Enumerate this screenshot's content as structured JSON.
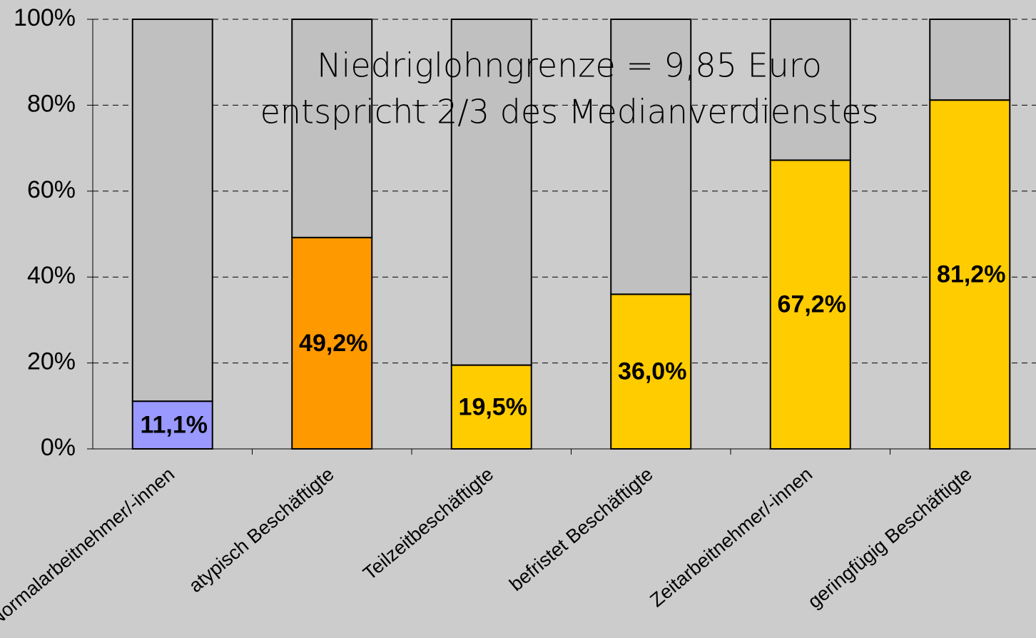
{
  "chart_data": {
    "type": "stacked_bar",
    "annotation": [
      "Niedriglohngrenze = 9,85 Euro",
      "entspricht 2/3 des Medianverdienstes"
    ],
    "categories": [
      "Normalarbeitnehmer/-innen",
      "atypisch Beschäftigte",
      "Teilzeitbeschäftigte",
      "befristet Beschäftigte",
      "Zeitarbeitnehmer/-innen",
      "geringfügig Beschäftigte"
    ],
    "series": [
      {
        "colors": [
          "#9999ff",
          "#ff9900",
          "#ffcc00",
          "#ffcc00",
          "#ffcc00",
          "#ffcc00"
        ],
        "values": [
          11.1,
          49.2,
          19.5,
          36.0,
          67.2,
          81.2
        ],
        "value_labels": [
          "11,1%",
          "49,2%",
          "19,5%",
          "36,0%",
          "67,2%",
          "81,2%"
        ]
      },
      {
        "color": "#c0c0c0",
        "values": [
          88.9,
          50.8,
          80.5,
          64.0,
          32.8,
          18.8
        ]
      }
    ],
    "ylim": [
      0,
      100
    ],
    "yticks": [
      {
        "value": 0,
        "label": "0%"
      },
      {
        "value": 20,
        "label": "20%"
      },
      {
        "value": 40,
        "label": "40%"
      },
      {
        "value": 60,
        "label": "60%"
      },
      {
        "value": 80,
        "label": "80%"
      },
      {
        "value": 100,
        "label": "100%"
      }
    ],
    "grid": true
  }
}
